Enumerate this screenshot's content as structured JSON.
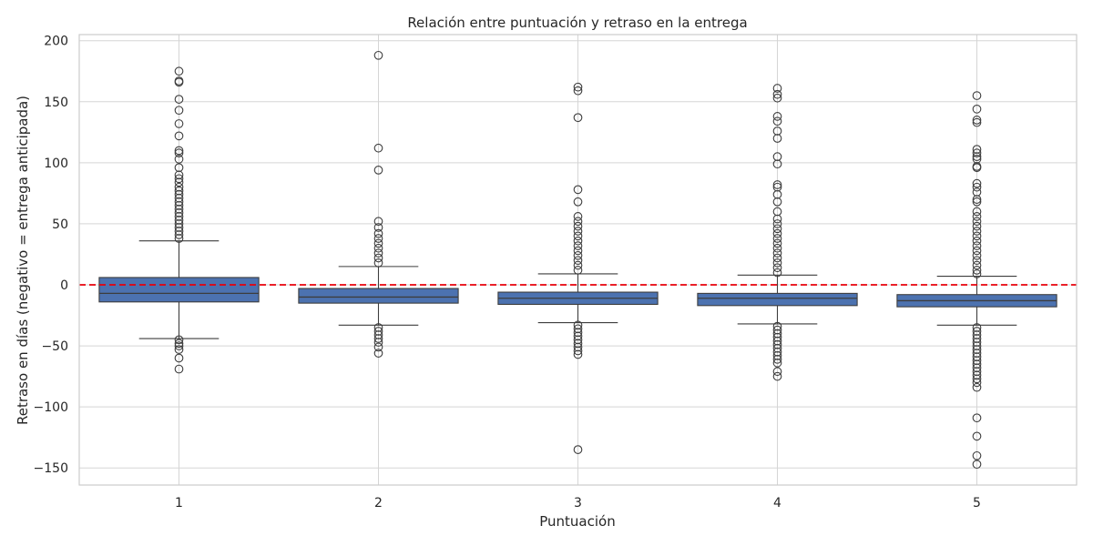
{
  "chart_data": {
    "type": "box",
    "title": "Relación entre puntuación y retraso en la entrega",
    "xlabel": "Puntuación",
    "ylabel": "Retraso en días (negativo = entrega anticipada)",
    "categories": [
      "1",
      "2",
      "3",
      "4",
      "5"
    ],
    "ylim": [
      -164,
      205
    ],
    "yticks": [
      -150,
      -100,
      -50,
      0,
      50,
      100,
      150,
      200
    ],
    "ytick_labels": [
      "−150",
      "−100",
      "−50",
      "0",
      "50",
      "100",
      "150",
      "200"
    ],
    "grid": true,
    "box_color": "#4c72b0",
    "reference_line": {
      "y": 0,
      "color": "#e8000b",
      "style": "dashed"
    },
    "boxes": [
      {
        "category": "1",
        "whisker_low": -44,
        "q1": -14,
        "median": -7,
        "q3": 6,
        "whisker_high": 36,
        "outliers": [
          175,
          167,
          166,
          152,
          143,
          132,
          122,
          110,
          108,
          103,
          96,
          90,
          87,
          84,
          80,
          77,
          74,
          71,
          68,
          65,
          62,
          59,
          56,
          53,
          50,
          47,
          44,
          41,
          38,
          -45,
          -48,
          -50,
          -53,
          -60,
          -69
        ]
      },
      {
        "category": "2",
        "whisker_low": -33,
        "q1": -15,
        "median": -10,
        "q3": -3,
        "whisker_high": 15,
        "outliers": [
          188,
          112,
          94,
          52,
          47,
          42,
          38,
          34,
          30,
          26,
          22,
          18,
          -35,
          -38,
          -41,
          -44,
          -47,
          -51,
          -56
        ]
      },
      {
        "category": "3",
        "whisker_low": -31,
        "q1": -16,
        "median": -11,
        "q3": -6,
        "whisker_high": 9,
        "outliers": [
          162,
          159,
          137,
          78,
          68,
          56,
          52,
          48,
          44,
          40,
          36,
          32,
          28,
          24,
          20,
          16,
          12,
          -33,
          -36,
          -39,
          -42,
          -45,
          -48,
          -51,
          -54,
          -57,
          -135
        ]
      },
      {
        "category": "4",
        "whisker_low": -32,
        "q1": -17,
        "median": -11,
        "q3": -7,
        "whisker_high": 8,
        "outliers": [
          161,
          156,
          153,
          138,
          134,
          126,
          120,
          105,
          99,
          82,
          80,
          74,
          68,
          60,
          54,
          50,
          46,
          42,
          38,
          34,
          30,
          26,
          22,
          18,
          14,
          10,
          -34,
          -37,
          -40,
          -43,
          -46,
          -49,
          -52,
          -55,
          -58,
          -61,
          -64,
          -71,
          -75
        ]
      },
      {
        "category": "5",
        "whisker_low": -33,
        "q1": -18,
        "median": -13,
        "q3": -8,
        "whisker_high": 7,
        "outliers": [
          155,
          144,
          135,
          133,
          111,
          108,
          105,
          103,
          97,
          96,
          83,
          80,
          76,
          70,
          68,
          60,
          56,
          52,
          48,
          44,
          40,
          36,
          32,
          28,
          24,
          20,
          16,
          12,
          9,
          -35,
          -38,
          -41,
          -44,
          -47,
          -50,
          -53,
          -56,
          -59,
          -62,
          -65,
          -68,
          -71,
          -74,
          -77,
          -80,
          -84,
          -109,
          -124,
          -140,
          -147
        ]
      }
    ]
  }
}
